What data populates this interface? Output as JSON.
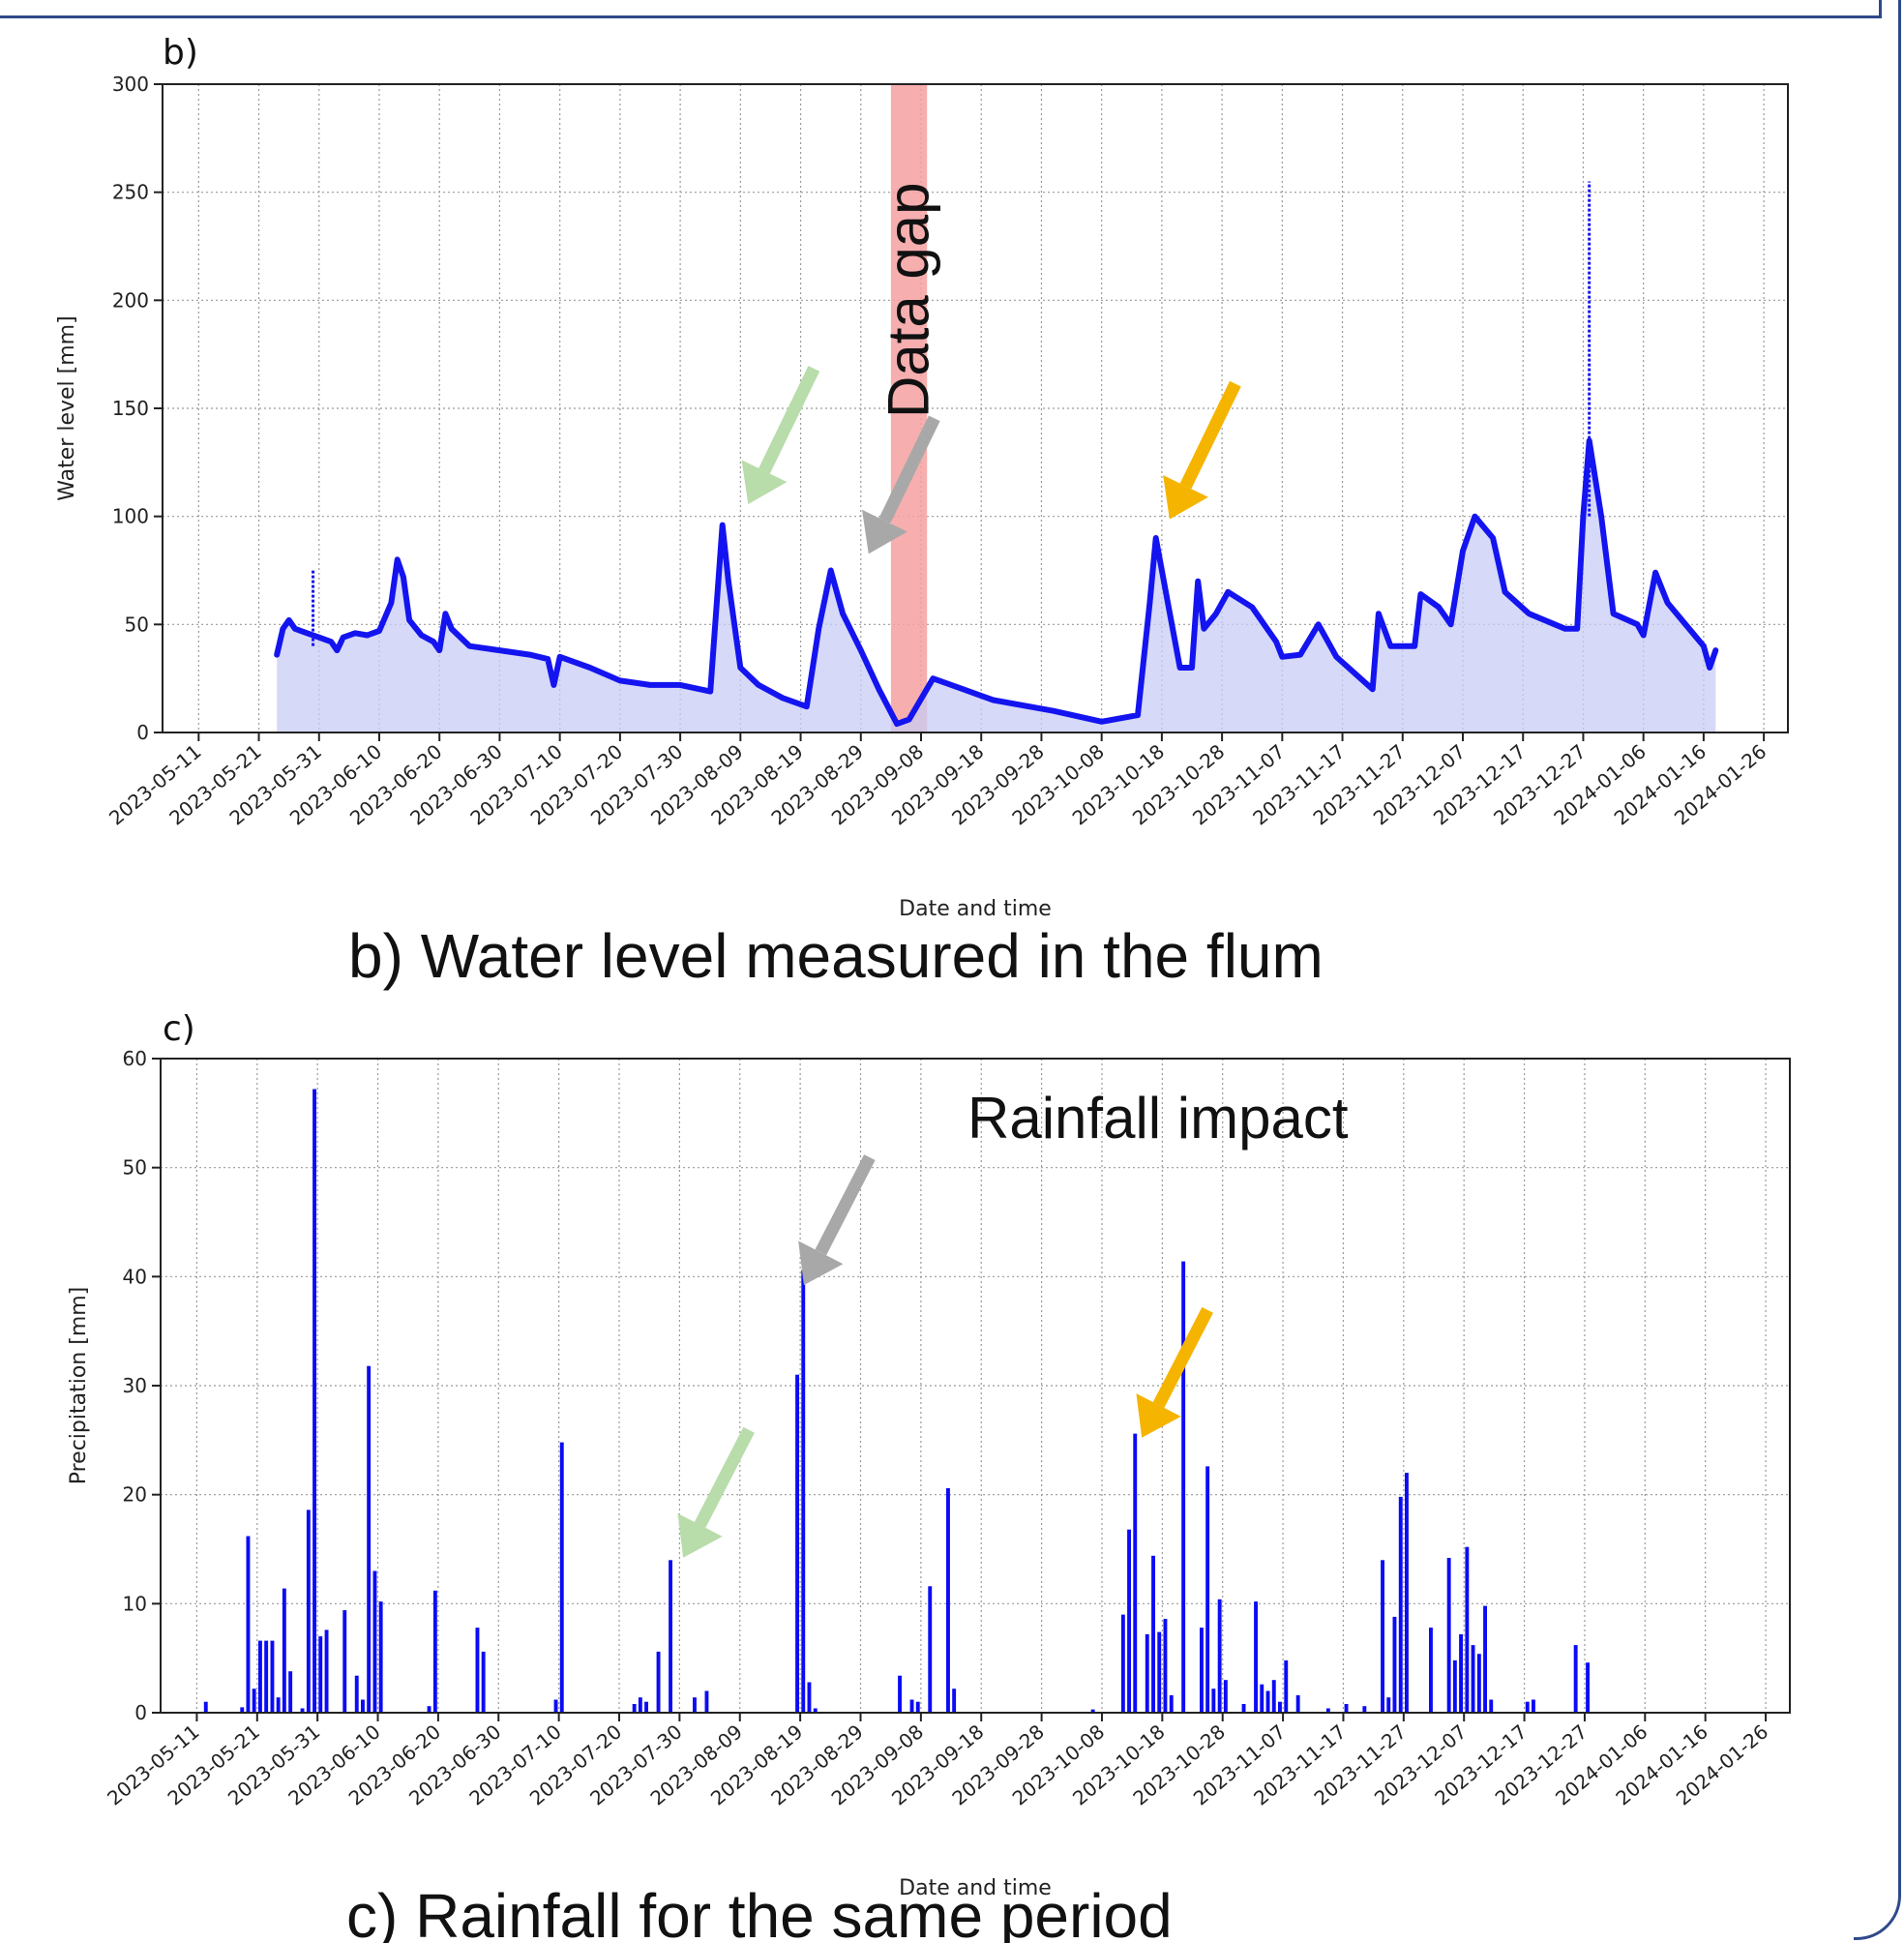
{
  "chart_data": [
    {
      "panel": "b)",
      "type": "area",
      "caption": "b) Water level measured in the flum",
      "xlabel": "Date and time",
      "ylabel": "Water level [mm]",
      "xlim": [
        "2023-05-05",
        "2024-01-30"
      ],
      "ylim": [
        0,
        300
      ],
      "yticks": [
        0,
        50,
        100,
        150,
        200,
        250,
        300
      ],
      "xticks": [
        "2023-05-11",
        "2023-05-21",
        "2023-05-31",
        "2023-06-10",
        "2023-06-20",
        "2023-06-30",
        "2023-07-10",
        "2023-07-20",
        "2023-07-30",
        "2023-08-09",
        "2023-08-19",
        "2023-08-29",
        "2023-09-08",
        "2023-09-18",
        "2023-09-28",
        "2023-10-08",
        "2023-10-18",
        "2023-10-28",
        "2023-11-07",
        "2023-11-17",
        "2023-11-27",
        "2023-12-07",
        "2023-12-17",
        "2023-12-27",
        "2024-01-06",
        "2024-01-16",
        "2024-01-26"
      ],
      "grid": true,
      "annotations": [
        {
          "text": "Data gap",
          "x_start": "2023-09-03",
          "x_end": "2023-09-09",
          "color": "#f4a0a0"
        },
        {
          "marker": "arrow",
          "color": "#b8dcaa",
          "x": "2023-08-09",
          "y": 103
        },
        {
          "marker": "arrow",
          "color": "#a8a8a8",
          "x": "2023-08-29",
          "y": 80
        },
        {
          "marker": "arrow",
          "color": "#f5b400",
          "x": "2023-10-18",
          "y": 96
        }
      ],
      "series": [
        {
          "points": [
            [
              "2023-05-24",
              36
            ],
            [
              "2023-05-25",
              48
            ],
            [
              "2023-05-26",
              52
            ],
            [
              "2023-05-27",
              48
            ],
            [
              "2023-05-29",
              46
            ],
            [
              "2023-05-31",
              44
            ],
            [
              "2023-06-02",
              42
            ],
            [
              "2023-06-03",
              38
            ],
            [
              "2023-06-04",
              44
            ],
            [
              "2023-06-06",
              46
            ],
            [
              "2023-06-08",
              45
            ],
            [
              "2023-06-10",
              47
            ],
            [
              "2023-06-12",
              60
            ],
            [
              "2023-06-13",
              80
            ],
            [
              "2023-06-14",
              72
            ],
            [
              "2023-06-15",
              52
            ],
            [
              "2023-06-17",
              45
            ],
            [
              "2023-06-19",
              42
            ],
            [
              "2023-06-20",
              38
            ],
            [
              "2023-06-21",
              55
            ],
            [
              "2023-06-22",
              48
            ],
            [
              "2023-06-25",
              40
            ],
            [
              "2023-06-30",
              38
            ],
            [
              "2023-07-05",
              36
            ],
            [
              "2023-07-08",
              34
            ],
            [
              "2023-07-09",
              22
            ],
            [
              "2023-07-10",
              35
            ],
            [
              "2023-07-15",
              30
            ],
            [
              "2023-07-20",
              24
            ],
            [
              "2023-07-25",
              22
            ],
            [
              "2023-07-30",
              22
            ],
            [
              "2023-08-04",
              19
            ],
            [
              "2023-08-06",
              96
            ],
            [
              "2023-08-07",
              70
            ],
            [
              "2023-08-09",
              30
            ],
            [
              "2023-08-12",
              22
            ],
            [
              "2023-08-16",
              16
            ],
            [
              "2023-08-20",
              12
            ],
            [
              "2023-08-22",
              48
            ],
            [
              "2023-08-24",
              75
            ],
            [
              "2023-08-26",
              55
            ],
            [
              "2023-08-29",
              38
            ],
            [
              "2023-09-01",
              20
            ],
            [
              "2023-09-04",
              4
            ],
            [
              "2023-09-06",
              6
            ],
            [
              "2023-09-10",
              25
            ],
            [
              "2023-09-15",
              20
            ],
            [
              "2023-09-20",
              15
            ],
            [
              "2023-09-30",
              10
            ],
            [
              "2023-10-08",
              5
            ],
            [
              "2023-10-14",
              8
            ],
            [
              "2023-10-16",
              60
            ],
            [
              "2023-10-17",
              90
            ],
            [
              "2023-10-19",
              60
            ],
            [
              "2023-10-21",
              30
            ],
            [
              "2023-10-23",
              30
            ],
            [
              "2023-10-24",
              70
            ],
            [
              "2023-10-25",
              48
            ],
            [
              "2023-10-27",
              55
            ],
            [
              "2023-10-29",
              65
            ],
            [
              "2023-11-02",
              58
            ],
            [
              "2023-11-06",
              42
            ],
            [
              "2023-11-07",
              35
            ],
            [
              "2023-11-10",
              36
            ],
            [
              "2023-11-13",
              50
            ],
            [
              "2023-11-16",
              35
            ],
            [
              "2023-11-22",
              20
            ],
            [
              "2023-11-23",
              55
            ],
            [
              "2023-11-25",
              40
            ],
            [
              "2023-11-29",
              40
            ],
            [
              "2023-11-30",
              64
            ],
            [
              "2023-12-03",
              58
            ],
            [
              "2023-12-05",
              50
            ],
            [
              "2023-12-07",
              84
            ],
            [
              "2023-12-09",
              100
            ],
            [
              "2023-12-12",
              90
            ],
            [
              "2023-12-14",
              65
            ],
            [
              "2023-12-18",
              55
            ],
            [
              "2023-12-24",
              48
            ],
            [
              "2023-12-26",
              48
            ],
            [
              "2023-12-27",
              100
            ],
            [
              "2023-12-28",
              135
            ],
            [
              "2023-12-30",
              100
            ],
            [
              "2024-01-01",
              55
            ],
            [
              "2024-01-05",
              50
            ],
            [
              "2024-01-06",
              45
            ],
            [
              "2024-01-08",
              74
            ],
            [
              "2024-01-10",
              60
            ],
            [
              "2024-01-13",
              50
            ],
            [
              "2024-01-16",
              40
            ],
            [
              "2024-01-17",
              30
            ],
            [
              "2024-01-18",
              38
            ]
          ],
          "spikes": [
            {
              "date": "2023-05-30",
              "from": 40,
              "to": 75
            },
            {
              "date": "2023-12-28",
              "from": 100,
              "to": 255
            }
          ]
        }
      ]
    },
    {
      "panel": "c)",
      "type": "bar",
      "caption": "c) Rainfall for the same period",
      "xlabel": "Date and time",
      "ylabel": "Precipitation [mm]",
      "xlim": [
        "2023-05-05",
        "2024-01-30"
      ],
      "ylim": [
        0,
        60
      ],
      "yticks": [
        0,
        10,
        20,
        30,
        40,
        50,
        60
      ],
      "xticks": [
        "2023-05-11",
        "2023-05-21",
        "2023-05-31",
        "2023-06-10",
        "2023-06-20",
        "2023-06-30",
        "2023-07-10",
        "2023-07-20",
        "2023-07-30",
        "2023-08-09",
        "2023-08-19",
        "2023-08-29",
        "2023-09-08",
        "2023-09-18",
        "2023-09-28",
        "2023-10-08",
        "2023-10-18",
        "2023-10-28",
        "2023-11-07",
        "2023-11-17",
        "2023-11-27",
        "2023-12-07",
        "2023-12-17",
        "2023-12-27",
        "2024-01-06",
        "2024-01-16",
        "2024-01-26"
      ],
      "grid": true,
      "annotations": [
        {
          "text": "Rainfall impact"
        },
        {
          "marker": "arrow",
          "color": "#b8dcaa",
          "x": "2023-07-29",
          "y": 16
        },
        {
          "marker": "arrow",
          "color": "#a8a8a8",
          "x": "2023-08-18",
          "y": 41
        },
        {
          "marker": "arrow",
          "color": "#f5b400",
          "x": "2023-10-13",
          "y": 27
        }
      ],
      "series": [
        {
          "bars": [
            [
              "2023-05-12",
              1.0
            ],
            [
              "2023-05-18",
              0.5
            ],
            [
              "2023-05-19",
              16.2
            ],
            [
              "2023-05-20",
              2.2
            ],
            [
              "2023-05-21",
              6.6
            ],
            [
              "2023-05-22",
              6.6
            ],
            [
              "2023-05-23",
              6.6
            ],
            [
              "2023-05-24",
              1.4
            ],
            [
              "2023-05-25",
              11.4
            ],
            [
              "2023-05-26",
              3.8
            ],
            [
              "2023-05-28",
              0.4
            ],
            [
              "2023-05-29",
              18.6
            ],
            [
              "2023-05-30",
              57.2
            ],
            [
              "2023-05-31",
              7.0
            ],
            [
              "2023-06-01",
              7.6
            ],
            [
              "2023-06-04",
              9.4
            ],
            [
              "2023-06-06",
              3.4
            ],
            [
              "2023-06-07",
              1.2
            ],
            [
              "2023-06-08",
              31.8
            ],
            [
              "2023-06-09",
              13.0
            ],
            [
              "2023-06-10",
              10.2
            ],
            [
              "2023-06-18",
              0.6
            ],
            [
              "2023-06-19",
              11.2
            ],
            [
              "2023-06-26",
              7.8
            ],
            [
              "2023-06-27",
              5.6
            ],
            [
              "2023-07-09",
              1.2
            ],
            [
              "2023-07-10",
              24.8
            ],
            [
              "2023-07-22",
              0.8
            ],
            [
              "2023-07-23",
              1.4
            ],
            [
              "2023-07-24",
              1.0
            ],
            [
              "2023-07-26",
              5.6
            ],
            [
              "2023-07-28",
              14.0
            ],
            [
              "2023-08-01",
              1.4
            ],
            [
              "2023-08-03",
              2.0
            ],
            [
              "2023-08-18",
              31.0
            ],
            [
              "2023-08-19",
              40.6
            ],
            [
              "2023-08-20",
              2.8
            ],
            [
              "2023-08-21",
              0.4
            ],
            [
              "2023-09-04",
              3.4
            ],
            [
              "2023-09-06",
              1.2
            ],
            [
              "2023-09-07",
              1.0
            ],
            [
              "2023-09-09",
              11.6
            ],
            [
              "2023-09-12",
              20.6
            ],
            [
              "2023-09-13",
              2.2
            ],
            [
              "2023-10-06",
              0.3
            ],
            [
              "2023-10-11",
              9.0
            ],
            [
              "2023-10-12",
              16.8
            ],
            [
              "2023-10-13",
              25.6
            ],
            [
              "2023-10-15",
              7.2
            ],
            [
              "2023-10-16",
              14.4
            ],
            [
              "2023-10-17",
              7.4
            ],
            [
              "2023-10-18",
              8.6
            ],
            [
              "2023-10-19",
              1.6
            ],
            [
              "2023-10-21",
              41.4
            ],
            [
              "2023-10-24",
              7.8
            ],
            [
              "2023-10-25",
              22.6
            ],
            [
              "2023-10-26",
              2.2
            ],
            [
              "2023-10-27",
              10.4
            ],
            [
              "2023-10-28",
              3.0
            ],
            [
              "2023-10-31",
              0.8
            ],
            [
              "2023-11-02",
              10.2
            ],
            [
              "2023-11-03",
              2.6
            ],
            [
              "2023-11-04",
              2.0
            ],
            [
              "2023-11-05",
              3.0
            ],
            [
              "2023-11-06",
              1.0
            ],
            [
              "2023-11-07",
              4.8
            ],
            [
              "2023-11-09",
              1.6
            ],
            [
              "2023-11-14",
              0.4
            ],
            [
              "2023-11-17",
              0.8
            ],
            [
              "2023-11-20",
              0.6
            ],
            [
              "2023-11-23",
              14.0
            ],
            [
              "2023-11-24",
              1.4
            ],
            [
              "2023-11-25",
              8.8
            ],
            [
              "2023-11-26",
              19.8
            ],
            [
              "2023-11-27",
              22.0
            ],
            [
              "2023-12-01",
              7.8
            ],
            [
              "2023-12-04",
              14.2
            ],
            [
              "2023-12-05",
              4.8
            ],
            [
              "2023-12-06",
              7.2
            ],
            [
              "2023-12-07",
              15.2
            ],
            [
              "2023-12-08",
              6.2
            ],
            [
              "2023-12-09",
              5.4
            ],
            [
              "2023-12-10",
              9.8
            ],
            [
              "2023-12-11",
              1.2
            ],
            [
              "2023-12-17",
              1.0
            ],
            [
              "2023-12-18",
              1.2
            ],
            [
              "2023-12-25",
              6.2
            ],
            [
              "2023-12-27",
              4.6
            ]
          ]
        }
      ]
    }
  ]
}
